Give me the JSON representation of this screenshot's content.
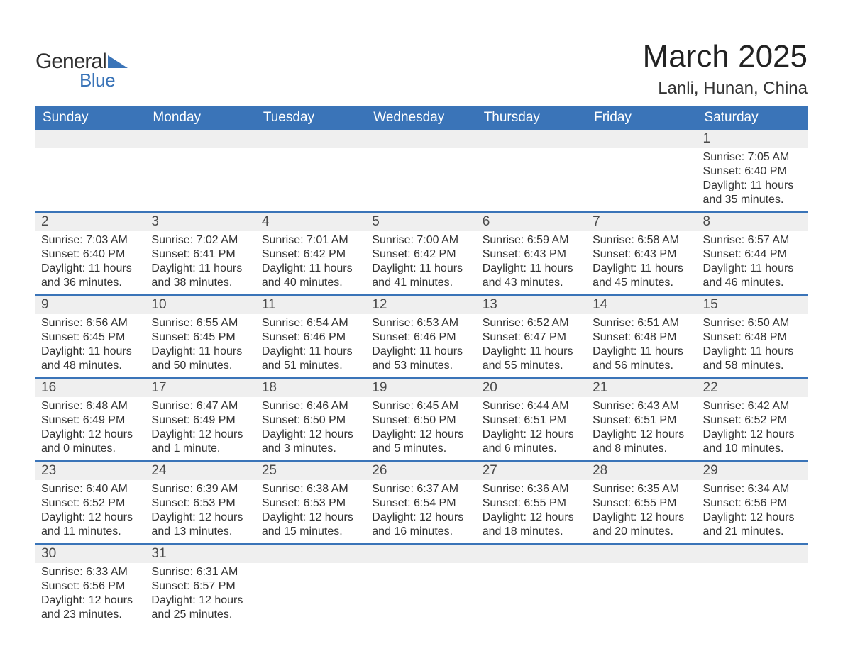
{
  "branding": {
    "logo_word1": "General",
    "logo_word2": "Blue",
    "logo_text_color": "#2f2f2f",
    "logo_accent_color": "#3a74b8"
  },
  "header": {
    "month_title": "March 2025",
    "location": "Lanli, Hunan, China"
  },
  "calendar": {
    "header_bg": "#3a74b8",
    "header_fg": "#ffffff",
    "daynum_bg": "#efefef",
    "row_divider": "#3a74b8",
    "text_color": "#333333",
    "body_fontsize": 16,
    "header_fontsize": 19,
    "columns": [
      "Sunday",
      "Monday",
      "Tuesday",
      "Wednesday",
      "Thursday",
      "Friday",
      "Saturday"
    ],
    "weeks": [
      [
        null,
        null,
        null,
        null,
        null,
        null,
        {
          "n": "1",
          "sr": "Sunrise: 7:05 AM",
          "ss": "Sunset: 6:40 PM",
          "d1": "Daylight: 11 hours",
          "d2": "and 35 minutes."
        }
      ],
      [
        {
          "n": "2",
          "sr": "Sunrise: 7:03 AM",
          "ss": "Sunset: 6:40 PM",
          "d1": "Daylight: 11 hours",
          "d2": "and 36 minutes."
        },
        {
          "n": "3",
          "sr": "Sunrise: 7:02 AM",
          "ss": "Sunset: 6:41 PM",
          "d1": "Daylight: 11 hours",
          "d2": "and 38 minutes."
        },
        {
          "n": "4",
          "sr": "Sunrise: 7:01 AM",
          "ss": "Sunset: 6:42 PM",
          "d1": "Daylight: 11 hours",
          "d2": "and 40 minutes."
        },
        {
          "n": "5",
          "sr": "Sunrise: 7:00 AM",
          "ss": "Sunset: 6:42 PM",
          "d1": "Daylight: 11 hours",
          "d2": "and 41 minutes."
        },
        {
          "n": "6",
          "sr": "Sunrise: 6:59 AM",
          "ss": "Sunset: 6:43 PM",
          "d1": "Daylight: 11 hours",
          "d2": "and 43 minutes."
        },
        {
          "n": "7",
          "sr": "Sunrise: 6:58 AM",
          "ss": "Sunset: 6:43 PM",
          "d1": "Daylight: 11 hours",
          "d2": "and 45 minutes."
        },
        {
          "n": "8",
          "sr": "Sunrise: 6:57 AM",
          "ss": "Sunset: 6:44 PM",
          "d1": "Daylight: 11 hours",
          "d2": "and 46 minutes."
        }
      ],
      [
        {
          "n": "9",
          "sr": "Sunrise: 6:56 AM",
          "ss": "Sunset: 6:45 PM",
          "d1": "Daylight: 11 hours",
          "d2": "and 48 minutes."
        },
        {
          "n": "10",
          "sr": "Sunrise: 6:55 AM",
          "ss": "Sunset: 6:45 PM",
          "d1": "Daylight: 11 hours",
          "d2": "and 50 minutes."
        },
        {
          "n": "11",
          "sr": "Sunrise: 6:54 AM",
          "ss": "Sunset: 6:46 PM",
          "d1": "Daylight: 11 hours",
          "d2": "and 51 minutes."
        },
        {
          "n": "12",
          "sr": "Sunrise: 6:53 AM",
          "ss": "Sunset: 6:46 PM",
          "d1": "Daylight: 11 hours",
          "d2": "and 53 minutes."
        },
        {
          "n": "13",
          "sr": "Sunrise: 6:52 AM",
          "ss": "Sunset: 6:47 PM",
          "d1": "Daylight: 11 hours",
          "d2": "and 55 minutes."
        },
        {
          "n": "14",
          "sr": "Sunrise: 6:51 AM",
          "ss": "Sunset: 6:48 PM",
          "d1": "Daylight: 11 hours",
          "d2": "and 56 minutes."
        },
        {
          "n": "15",
          "sr": "Sunrise: 6:50 AM",
          "ss": "Sunset: 6:48 PM",
          "d1": "Daylight: 11 hours",
          "d2": "and 58 minutes."
        }
      ],
      [
        {
          "n": "16",
          "sr": "Sunrise: 6:48 AM",
          "ss": "Sunset: 6:49 PM",
          "d1": "Daylight: 12 hours",
          "d2": "and 0 minutes."
        },
        {
          "n": "17",
          "sr": "Sunrise: 6:47 AM",
          "ss": "Sunset: 6:49 PM",
          "d1": "Daylight: 12 hours",
          "d2": "and 1 minute."
        },
        {
          "n": "18",
          "sr": "Sunrise: 6:46 AM",
          "ss": "Sunset: 6:50 PM",
          "d1": "Daylight: 12 hours",
          "d2": "and 3 minutes."
        },
        {
          "n": "19",
          "sr": "Sunrise: 6:45 AM",
          "ss": "Sunset: 6:50 PM",
          "d1": "Daylight: 12 hours",
          "d2": "and 5 minutes."
        },
        {
          "n": "20",
          "sr": "Sunrise: 6:44 AM",
          "ss": "Sunset: 6:51 PM",
          "d1": "Daylight: 12 hours",
          "d2": "and 6 minutes."
        },
        {
          "n": "21",
          "sr": "Sunrise: 6:43 AM",
          "ss": "Sunset: 6:51 PM",
          "d1": "Daylight: 12 hours",
          "d2": "and 8 minutes."
        },
        {
          "n": "22",
          "sr": "Sunrise: 6:42 AM",
          "ss": "Sunset: 6:52 PM",
          "d1": "Daylight: 12 hours",
          "d2": "and 10 minutes."
        }
      ],
      [
        {
          "n": "23",
          "sr": "Sunrise: 6:40 AM",
          "ss": "Sunset: 6:52 PM",
          "d1": "Daylight: 12 hours",
          "d2": "and 11 minutes."
        },
        {
          "n": "24",
          "sr": "Sunrise: 6:39 AM",
          "ss": "Sunset: 6:53 PM",
          "d1": "Daylight: 12 hours",
          "d2": "and 13 minutes."
        },
        {
          "n": "25",
          "sr": "Sunrise: 6:38 AM",
          "ss": "Sunset: 6:53 PM",
          "d1": "Daylight: 12 hours",
          "d2": "and 15 minutes."
        },
        {
          "n": "26",
          "sr": "Sunrise: 6:37 AM",
          "ss": "Sunset: 6:54 PM",
          "d1": "Daylight: 12 hours",
          "d2": "and 16 minutes."
        },
        {
          "n": "27",
          "sr": "Sunrise: 6:36 AM",
          "ss": "Sunset: 6:55 PM",
          "d1": "Daylight: 12 hours",
          "d2": "and 18 minutes."
        },
        {
          "n": "28",
          "sr": "Sunrise: 6:35 AM",
          "ss": "Sunset: 6:55 PM",
          "d1": "Daylight: 12 hours",
          "d2": "and 20 minutes."
        },
        {
          "n": "29",
          "sr": "Sunrise: 6:34 AM",
          "ss": "Sunset: 6:56 PM",
          "d1": "Daylight: 12 hours",
          "d2": "and 21 minutes."
        }
      ],
      [
        {
          "n": "30",
          "sr": "Sunrise: 6:33 AM",
          "ss": "Sunset: 6:56 PM",
          "d1": "Daylight: 12 hours",
          "d2": "and 23 minutes."
        },
        {
          "n": "31",
          "sr": "Sunrise: 6:31 AM",
          "ss": "Sunset: 6:57 PM",
          "d1": "Daylight: 12 hours",
          "d2": "and 25 minutes."
        },
        null,
        null,
        null,
        null,
        null
      ]
    ]
  }
}
